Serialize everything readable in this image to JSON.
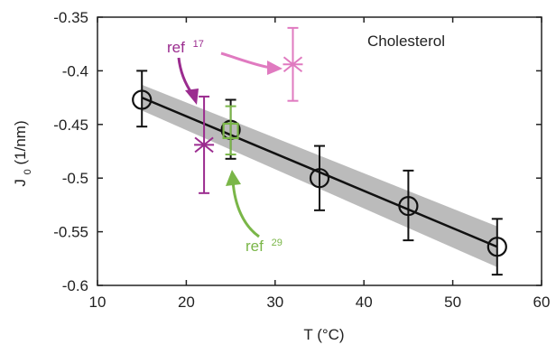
{
  "chart_data": {
    "type": "scatter",
    "title": "",
    "xlabel": "T (°C)",
    "ylabel_main": "J",
    "ylabel_sub": "0",
    "ylabel_unit": " (1/nm)",
    "xlim": [
      10,
      60
    ],
    "ylim": [
      -0.6,
      -0.35
    ],
    "x_ticks": [
      10,
      20,
      30,
      40,
      50,
      60
    ],
    "y_ticks": [
      -0.6,
      -0.55,
      -0.5,
      -0.45,
      -0.4,
      -0.35
    ],
    "x_tick_labels": [
      "10",
      "20",
      "30",
      "40",
      "50",
      "60"
    ],
    "y_tick_labels": [
      "-0.6",
      "-0.55",
      "-0.5",
      "-0.45",
      "-0.4",
      "-0.35"
    ],
    "grid": false,
    "inset_label": "Cholesterol",
    "series": [
      {
        "marker": "circle",
        "color": "#111111",
        "points": [
          {
            "x": 15,
            "y": -0.427,
            "err_low": -0.452,
            "err_high": -0.4
          },
          {
            "x": 25,
            "y": -0.455,
            "err_low": -0.482,
            "err_high": -0.427
          },
          {
            "x": 35,
            "y": -0.5,
            "err_low": -0.53,
            "err_high": -0.47
          },
          {
            "x": 45,
            "y": -0.526,
            "err_low": -0.558,
            "err_high": -0.493
          },
          {
            "x": 55,
            "y": -0.564,
            "err_low": -0.59,
            "err_high": -0.538
          }
        ]
      },
      {
        "marker": "x-star",
        "color": "#9b2c8f",
        "points": [
          {
            "x": 22,
            "y": -0.469,
            "err_low": -0.514,
            "err_high": -0.424
          }
        ]
      },
      {
        "marker": "x-star",
        "color": "#e07ac0",
        "points": [
          {
            "x": 32,
            "y": -0.394,
            "err_low": -0.428,
            "err_high": -0.36
          }
        ]
      },
      {
        "marker": "square",
        "color": "#7ab648",
        "points": [
          {
            "x": 25,
            "y": -0.456,
            "err_low": -0.478,
            "err_high": -0.433
          }
        ]
      }
    ],
    "fit_line": {
      "x": [
        15,
        55
      ],
      "y": [
        -0.425,
        -0.564
      ],
      "color": "#111111"
    },
    "confidence_band": {
      "x": [
        15,
        55
      ],
      "upper": [
        -0.413,
        -0.545
      ],
      "lower": [
        -0.437,
        -0.583
      ],
      "color": "#aaaaaa"
    },
    "annotations": [
      {
        "text": "ref",
        "sup": "17",
        "color": "#9b2c8f"
      },
      {
        "text": "ref",
        "sup": "29",
        "color": "#7ab648"
      }
    ]
  }
}
